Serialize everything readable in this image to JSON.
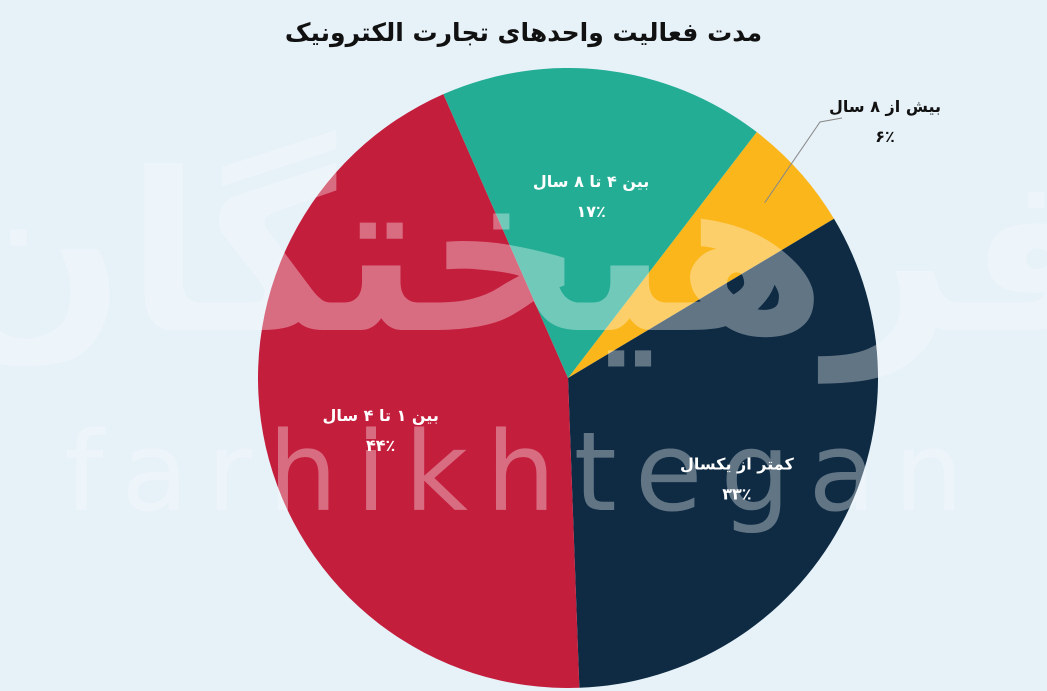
{
  "watermark": {
    "fa": "فرهیختگان",
    "en": "farhikhtegan"
  },
  "chart_data": {
    "type": "pie",
    "title": "مدت فعالیت واحدهای تجارت الکترونیک",
    "start_angle_deg": 37.5,
    "direction": "clockwise",
    "slices": [
      {
        "label": "بیش از ۸ سال",
        "value": 6,
        "value_label": "۶٪",
        "color": "#fbb61b",
        "label_outside": true
      },
      {
        "label": "کمتر از یکسال",
        "value": 33,
        "value_label": "۳۳٪",
        "color": "#0e2b43"
      },
      {
        "label": "بین ۱ تا ۴ سال",
        "value": 44,
        "value_label": "۴۴٪",
        "color": "#c41e3d"
      },
      {
        "label": "بین ۴ تا ۸ سال",
        "value": 17,
        "value_label": "۱۷٪",
        "color": "#23ad94"
      }
    ]
  }
}
